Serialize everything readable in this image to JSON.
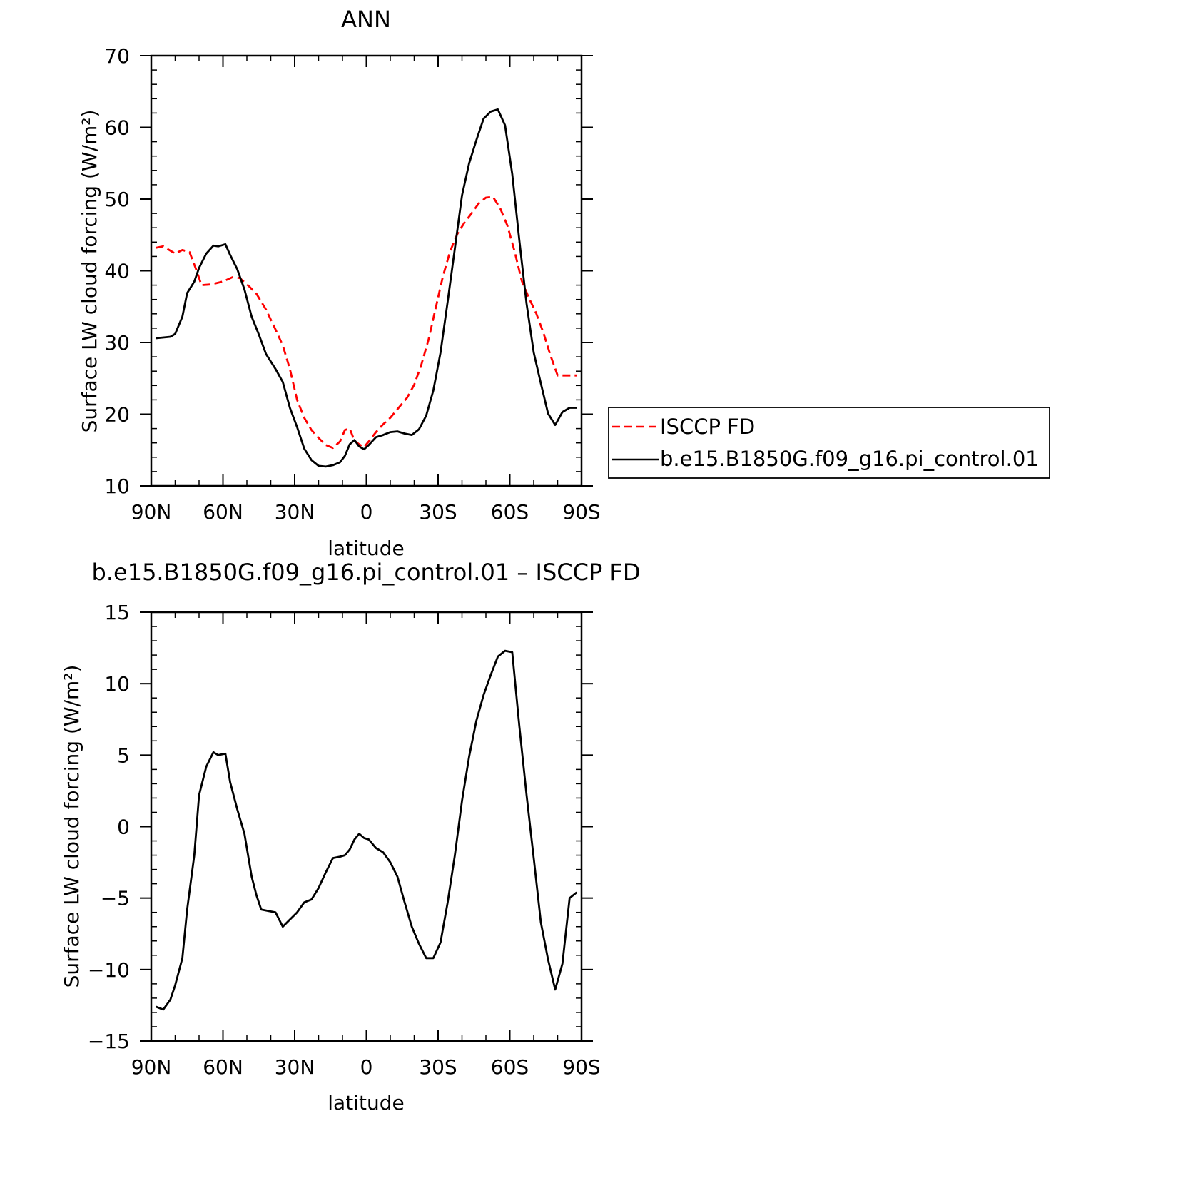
{
  "chart_data": [
    {
      "type": "line",
      "title": "ANN",
      "xlabel": "latitude",
      "ylabel": "Surface LW cloud forcing (W/m²)",
      "xlim": [
        90,
        -90
      ],
      "ylim": [
        10,
        70
      ],
      "x_tick_values": [
        90,
        60,
        30,
        0,
        -30,
        -60,
        -90
      ],
      "x_tick_labels": [
        "90N",
        "60N",
        "30N",
        "0",
        "30S",
        "60S",
        "90S"
      ],
      "y_tick_values": [
        10,
        20,
        30,
        40,
        50,
        60,
        70
      ],
      "y_tick_labels": [
        "10",
        "20",
        "30",
        "40",
        "50",
        "60",
        "70"
      ],
      "grid": false,
      "legend_placement": "right",
      "series": [
        {
          "name": "ISCCP FD",
          "color": "#ff0000",
          "dash": "dashed",
          "x": [
            88,
            85,
            80,
            77,
            74,
            71,
            69,
            65,
            60,
            56,
            53,
            49,
            46,
            42,
            38,
            35,
            32,
            29,
            26,
            23,
            20,
            17,
            14,
            11,
            9,
            7,
            5,
            3,
            1,
            -1,
            -4,
            -7,
            -10,
            -13,
            -17,
            -20,
            -23,
            -26,
            -29,
            -32,
            -35,
            -38,
            -41,
            -44,
            -47,
            -50,
            -53,
            -56,
            -59,
            -62,
            -65,
            -68,
            -71,
            -74,
            -77,
            -80,
            -83,
            -86,
            -88
          ],
          "values": [
            43.2,
            43.4,
            42.4,
            42.9,
            42.6,
            40.0,
            38.0,
            38.1,
            38.5,
            39.1,
            39.0,
            37.8,
            36.8,
            34.6,
            31.8,
            29.6,
            26.3,
            22.0,
            19.5,
            17.8,
            16.7,
            15.7,
            15.3,
            16.2,
            17.8,
            18.0,
            16.3,
            15.8,
            15.4,
            16.2,
            17.5,
            18.6,
            19.5,
            20.7,
            22.3,
            24.1,
            26.9,
            30.4,
            34.8,
            39.2,
            42.7,
            45.1,
            46.7,
            48.0,
            49.4,
            50.2,
            50.3,
            48.7,
            46.3,
            42.7,
            38.6,
            36.2,
            34.1,
            31.4,
            28.2,
            25.4,
            25.4,
            25.4,
            25.4
          ]
        },
        {
          "name": "b.e15.B1850G.f09_g16.pi_control.01",
          "color": "#000000",
          "dash": "solid",
          "x": [
            88,
            85,
            82,
            80,
            77,
            75,
            72,
            70,
            67,
            64,
            62,
            59,
            57,
            54,
            51,
            48,
            45,
            42,
            38,
            35,
            32,
            29,
            26,
            23,
            20,
            17,
            14,
            11,
            9,
            7,
            5,
            3,
            1,
            -1,
            -4,
            -7,
            -10,
            -13,
            -16,
            -19,
            -22,
            -25,
            -28,
            -31,
            -34,
            -37,
            -40,
            -43,
            -46,
            -49,
            -52,
            -55,
            -58,
            -61,
            -64,
            -67,
            -70,
            -73,
            -76,
            -79,
            -82,
            -85,
            -88
          ],
          "values": [
            30.6,
            30.7,
            30.8,
            31.2,
            33.6,
            36.9,
            38.5,
            40.4,
            42.4,
            43.5,
            43.4,
            43.7,
            42.2,
            40.2,
            37.4,
            33.6,
            31.1,
            28.4,
            26.3,
            24.5,
            20.9,
            18.2,
            15.2,
            13.6,
            12.8,
            12.7,
            12.9,
            13.3,
            14.2,
            15.8,
            16.4,
            15.5,
            15.1,
            15.7,
            16.8,
            17.1,
            17.5,
            17.6,
            17.3,
            17.1,
            17.9,
            19.8,
            23.3,
            28.6,
            35.7,
            43.1,
            50.5,
            55.0,
            58.2,
            61.2,
            62.2,
            62.5,
            60.3,
            53.5,
            44.2,
            35.4,
            28.6,
            24.3,
            20.1,
            18.5,
            20.3,
            20.9,
            20.9
          ]
        }
      ]
    },
    {
      "type": "line",
      "title": "b.e15.B1850G.f09_g16.pi_control.01 – ISCCP FD",
      "xlabel": "latitude",
      "ylabel": "Surface LW cloud forcing (W/m²)",
      "xlim": [
        90,
        -90
      ],
      "ylim": [
        -15,
        15
      ],
      "x_tick_values": [
        90,
        60,
        30,
        0,
        -30,
        -60,
        -90
      ],
      "x_tick_labels": [
        "90N",
        "60N",
        "30N",
        "0",
        "30S",
        "60S",
        "90S"
      ],
      "y_tick_values": [
        -15,
        -10,
        -5,
        0,
        5,
        10,
        15
      ],
      "y_tick_labels": [
        "−15",
        "−10",
        "−5",
        "0",
        "5",
        "10",
        "15"
      ],
      "grid": false,
      "series": [
        {
          "color": "#000000",
          "dash": "solid",
          "x": [
            88,
            85,
            82,
            80,
            77,
            75,
            72,
            70,
            67,
            64,
            62,
            59,
            57,
            54,
            51,
            48,
            46,
            44,
            41,
            38,
            35,
            32,
            29,
            26,
            23,
            20,
            17,
            14,
            11,
            9,
            7,
            5,
            3,
            1,
            -1,
            -4,
            -7,
            -10,
            -13,
            -16,
            -19,
            -22,
            -25,
            -28,
            -31,
            -34,
            -37,
            -40,
            -43,
            -46,
            -49,
            -52,
            -55,
            -58,
            -61,
            -64,
            -67,
            -70,
            -73,
            -76,
            -79,
            -82,
            -85,
            -88
          ],
          "values": [
            -12.6,
            -12.8,
            -12.1,
            -11.1,
            -9.2,
            -5.8,
            -2.0,
            2.2,
            4.2,
            5.2,
            5.0,
            5.1,
            3.1,
            1.2,
            -0.5,
            -3.5,
            -4.8,
            -5.8,
            -5.9,
            -6.0,
            -7.0,
            -6.5,
            -6.0,
            -5.3,
            -5.1,
            -4.3,
            -3.2,
            -2.2,
            -2.1,
            -2.0,
            -1.6,
            -0.9,
            -0.5,
            -0.8,
            -0.9,
            -1.5,
            -1.8,
            -2.5,
            -3.5,
            -5.3,
            -7.0,
            -8.2,
            -9.2,
            -9.2,
            -8.1,
            -5.3,
            -2.0,
            1.8,
            4.9,
            7.4,
            9.2,
            10.6,
            11.9,
            12.3,
            12.2,
            7.0,
            2.2,
            -2.2,
            -6.7,
            -9.3,
            -11.4,
            -9.6,
            -5.0,
            -4.6
          ]
        }
      ]
    }
  ]
}
